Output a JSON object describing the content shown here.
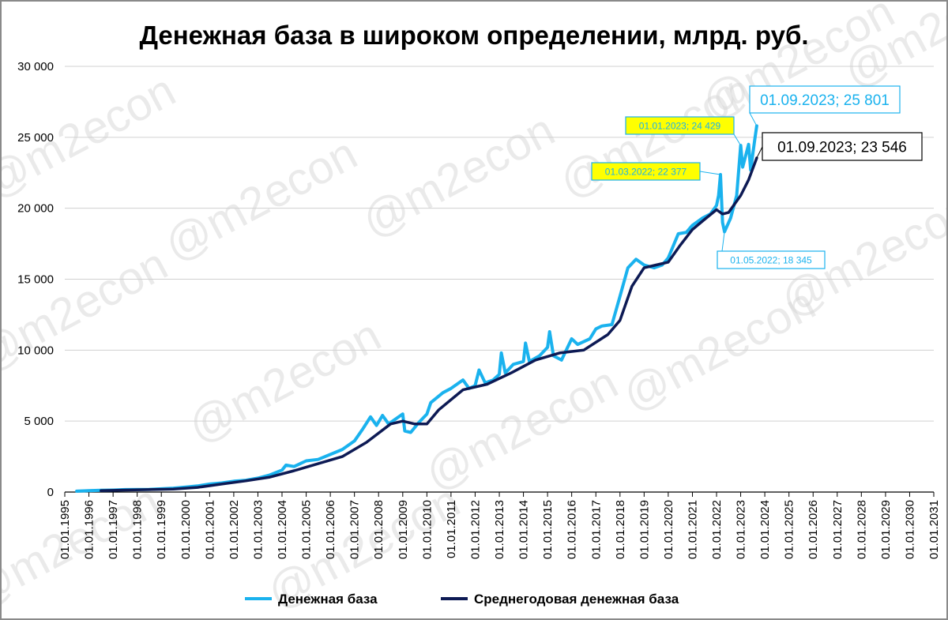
{
  "chart_data": {
    "type": "line",
    "title": "Денежная база в широком определении, млрд. руб.",
    "xlabel": "",
    "ylabel": "",
    "ylim": [
      0,
      30000
    ],
    "y_ticks": [
      0,
      5000,
      10000,
      15000,
      20000,
      25000,
      30000
    ],
    "y_tick_labels": [
      "0",
      "5 000",
      "10 000",
      "15 000",
      "20 000",
      "25 000",
      "30 000"
    ],
    "x_range": [
      "1995-01-01",
      "2031-01-01"
    ],
    "x_tick_labels": [
      "01.01.1995",
      "01.01.1996",
      "01.01.1997",
      "01.01.1998",
      "01.01.1999",
      "01.01.2000",
      "01.01.2001",
      "01.01.2002",
      "01.01.2003",
      "01.01.2004",
      "01.01.2005",
      "01.01.2006",
      "01.01.2007",
      "01.01.2008",
      "01.01.2009",
      "01.01.2010",
      "01.01.2011",
      "01.01.2012",
      "01.01.2013",
      "01.01.2014",
      "01.01.2015",
      "01.01.2016",
      "01.01.2017",
      "01.01.2018",
      "01.01.2019",
      "01.01.2020",
      "01.01.2021",
      "01.01.2022",
      "01.01.2023",
      "01.01.2024",
      "01.01.2025",
      "01.01.2026",
      "01.01.2027",
      "01.01.2028",
      "01.01.2029",
      "01.01.2030",
      "01.01.2031"
    ],
    "grid": "horizontal",
    "legend_position": "bottom",
    "series": [
      {
        "name": "Денежная база",
        "color": "#1ab2ee",
        "points": [
          [
            "1995-07-01",
            60
          ],
          [
            "1996-01-01",
            100
          ],
          [
            "1996-07-01",
            120
          ],
          [
            "1997-01-01",
            140
          ],
          [
            "1997-07-01",
            170
          ],
          [
            "1998-01-01",
            180
          ],
          [
            "1998-07-01",
            190
          ],
          [
            "1999-01-01",
            230
          ],
          [
            "1999-07-01",
            270
          ],
          [
            "2000-01-01",
            350
          ],
          [
            "2000-07-01",
            430
          ],
          [
            "2001-01-01",
            560
          ],
          [
            "2001-07-01",
            640
          ],
          [
            "2002-01-01",
            760
          ],
          [
            "2002-07-01",
            830
          ],
          [
            "2003-01-01",
            980
          ],
          [
            "2003-07-01",
            1200
          ],
          [
            "2004-01-01",
            1550
          ],
          [
            "2004-03-01",
            1900
          ],
          [
            "2004-07-01",
            1800
          ],
          [
            "2005-01-01",
            2200
          ],
          [
            "2005-07-01",
            2300
          ],
          [
            "2006-01-01",
            2650
          ],
          [
            "2006-07-01",
            3000
          ],
          [
            "2007-01-01",
            3600
          ],
          [
            "2007-05-01",
            4400
          ],
          [
            "2007-09-01",
            5300
          ],
          [
            "2007-12-01",
            4700
          ],
          [
            "2008-03-01",
            5400
          ],
          [
            "2008-06-01",
            4800
          ],
          [
            "2008-12-01",
            5400
          ],
          [
            "2009-01-01",
            5500
          ],
          [
            "2009-02-01",
            4300
          ],
          [
            "2009-05-01",
            4200
          ],
          [
            "2009-09-01",
            4900
          ],
          [
            "2010-01-01",
            5500
          ],
          [
            "2010-03-01",
            6300
          ],
          [
            "2010-09-01",
            7000
          ],
          [
            "2011-01-01",
            7300
          ],
          [
            "2011-04-01",
            7600
          ],
          [
            "2011-07-01",
            7900
          ],
          [
            "2011-10-01",
            7300
          ],
          [
            "2012-01-01",
            7500
          ],
          [
            "2012-03-01",
            8600
          ],
          [
            "2012-06-01",
            7700
          ],
          [
            "2012-10-01",
            7900
          ],
          [
            "2013-01-01",
            8300
          ],
          [
            "2013-02-01",
            9800
          ],
          [
            "2013-04-01",
            8400
          ],
          [
            "2013-08-01",
            9000
          ],
          [
            "2014-01-01",
            9200
          ],
          [
            "2014-02-01",
            10500
          ],
          [
            "2014-04-01",
            9200
          ],
          [
            "2014-09-01",
            9600
          ],
          [
            "2015-01-01",
            10200
          ],
          [
            "2015-02-01",
            11300
          ],
          [
            "2015-04-01",
            9600
          ],
          [
            "2015-08-01",
            9300
          ],
          [
            "2016-01-01",
            10800
          ],
          [
            "2016-04-01",
            10400
          ],
          [
            "2016-10-01",
            10800
          ],
          [
            "2017-01-01",
            11500
          ],
          [
            "2017-04-01",
            11700
          ],
          [
            "2017-09-01",
            11800
          ],
          [
            "2018-01-01",
            13800
          ],
          [
            "2018-05-01",
            15800
          ],
          [
            "2018-09-01",
            16400
          ],
          [
            "2019-01-01",
            16000
          ],
          [
            "2019-06-01",
            15800
          ],
          [
            "2019-10-01",
            16000
          ],
          [
            "2020-01-01",
            16500
          ],
          [
            "2020-06-01",
            18200
          ],
          [
            "2020-10-01",
            18300
          ],
          [
            "2021-01-01",
            18800
          ],
          [
            "2021-06-01",
            19300
          ],
          [
            "2021-10-01",
            19600
          ],
          [
            "2022-01-01",
            20200
          ],
          [
            "2022-02-01",
            20900
          ],
          [
            "2022-03-01",
            22377
          ],
          [
            "2022-04-01",
            19000
          ],
          [
            "2022-05-01",
            18345
          ],
          [
            "2022-08-01",
            19300
          ],
          [
            "2022-11-01",
            20900
          ],
          [
            "2023-01-01",
            24429
          ],
          [
            "2023-02-01",
            22900
          ],
          [
            "2023-05-01",
            24500
          ],
          [
            "2023-06-01",
            22700
          ],
          [
            "2023-08-01",
            24800
          ],
          [
            "2023-09-01",
            25801
          ]
        ]
      },
      {
        "name": "Среднегодовая денежная база",
        "color": "#0d1a54",
        "points": [
          [
            "1996-07-01",
            100
          ],
          [
            "1997-07-01",
            140
          ],
          [
            "1998-07-01",
            170
          ],
          [
            "1999-07-01",
            210
          ],
          [
            "2000-07-01",
            330
          ],
          [
            "2001-07-01",
            560
          ],
          [
            "2002-07-01",
            790
          ],
          [
            "2003-07-01",
            1050
          ],
          [
            "2004-07-01",
            1500
          ],
          [
            "2005-07-01",
            2000
          ],
          [
            "2006-07-01",
            2500
          ],
          [
            "2007-07-01",
            3500
          ],
          [
            "2008-07-01",
            4800
          ],
          [
            "2009-01-01",
            5000
          ],
          [
            "2009-07-01",
            4800
          ],
          [
            "2010-01-01",
            4800
          ],
          [
            "2010-07-01",
            5800
          ],
          [
            "2011-07-01",
            7200
          ],
          [
            "2012-07-01",
            7600
          ],
          [
            "2013-07-01",
            8400
          ],
          [
            "2014-07-01",
            9300
          ],
          [
            "2015-07-01",
            9800
          ],
          [
            "2016-07-01",
            10000
          ],
          [
            "2017-07-01",
            11100
          ],
          [
            "2018-01-01",
            12100
          ],
          [
            "2018-07-01",
            14500
          ],
          [
            "2019-01-01",
            15800
          ],
          [
            "2019-07-01",
            16000
          ],
          [
            "2020-01-01",
            16200
          ],
          [
            "2020-07-01",
            17400
          ],
          [
            "2021-01-01",
            18500
          ],
          [
            "2021-07-01",
            19200
          ],
          [
            "2022-01-01",
            19900
          ],
          [
            "2022-04-01",
            19600
          ],
          [
            "2022-07-01",
            19700
          ],
          [
            "2023-01-01",
            20900
          ],
          [
            "2023-05-01",
            22000
          ],
          [
            "2023-09-01",
            23546
          ]
        ]
      }
    ],
    "annotations": [
      {
        "text": "01.01.2023; 24 429",
        "date": "2023-01-01",
        "value": 24429,
        "style": "yellow",
        "series": 0
      },
      {
        "text": "01.03.2022; 22 377",
        "date": "2022-03-01",
        "value": 22377,
        "style": "yellow",
        "series": 0
      },
      {
        "text": "01.05.2022; 18 345",
        "date": "2022-05-01",
        "value": 18345,
        "style": "blue-small",
        "series": 0
      },
      {
        "text": "01.09.2023;  25 801",
        "date": "2023-09-01",
        "value": 25801,
        "style": "blue-big",
        "series": 0
      },
      {
        "text": "01.09.2023;  23 546",
        "date": "2023-09-01",
        "value": 23546,
        "style": "black-big",
        "series": 1
      }
    ],
    "watermark": "@m2econ"
  }
}
